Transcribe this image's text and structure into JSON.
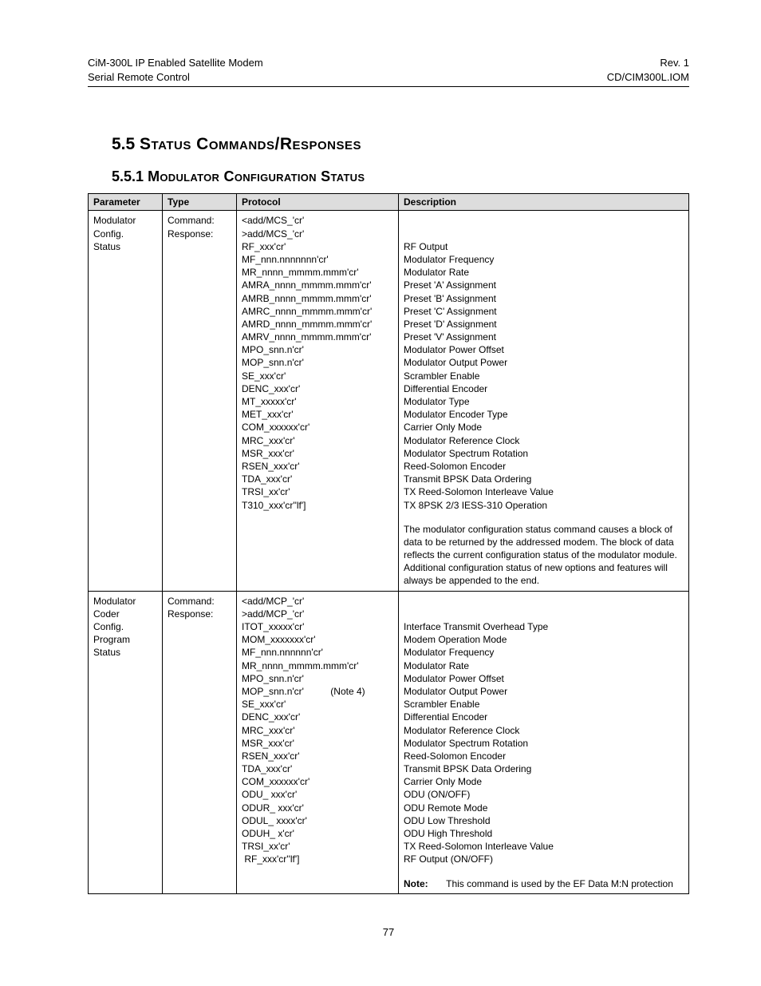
{
  "header": {
    "left1": "CiM-300L IP Enabled Satellite Modem",
    "left2": "Serial Remote Control",
    "right1": "Rev. 1",
    "right2": "CD/CIM300L.IOM"
  },
  "section": {
    "num": "5.5",
    "title": "Status Commands/Responses",
    "sub_num": "5.5.1",
    "sub_title": "Modulator Configuration Status"
  },
  "table": {
    "headers": [
      "Parameter",
      "Type",
      "Protocol",
      "Description"
    ],
    "rows": [
      {
        "parameter": "Modulator Config. Status",
        "type": "Command:\nResponse:",
        "protocol": [
          "<add/MCS_'cr'",
          ">add/MCS_'cr'",
          "RF_xxx'cr'",
          "MF_nnn.nnnnnnn'cr'",
          "MR_nnnn_mmmm.mmm'cr'",
          "AMRA_nnnn_mmmm.mmm'cr'",
          "AMRB_nnnn_mmmm.mmm'cr'",
          "AMRC_nnnn_mmmm.mmm'cr'",
          "AMRD_nnnn_mmmm.mmm'cr'",
          "AMRV_nnnn_mmmm.mmm'cr'",
          "MPO_snn.n'cr'",
          "MOP_snn.n'cr'",
          "SE_xxx'cr'",
          "DENC_xxx'cr'",
          "MT_xxxxx'cr'",
          "MET_xxx'cr'",
          "COM_xxxxxx'cr'",
          "MRC_xxx'cr'",
          "MSR_xxx'cr'",
          "RSEN_xxx'cr'",
          "TDA_xxx'cr'",
          "TRSI_xx'cr'",
          "T310_xxx'cr''lf']"
        ],
        "desc_lines": [
          "",
          "",
          "RF Output",
          "Modulator Frequency",
          "Modulator Rate",
          "Preset 'A' Assignment",
          "Preset 'B' Assignment",
          "Preset 'C' Assignment",
          "Preset 'D' Assignment",
          "Preset 'V' Assignment",
          "Modulator Power Offset",
          "Modulator Output Power",
          "Scrambler Enable",
          "Differential Encoder",
          "Modulator Type",
          "Modulator Encoder Type",
          "Carrier Only Mode",
          "Modulator Reference Clock",
          "Modulator Spectrum Rotation",
          "Reed-Solomon Encoder",
          "Transmit BPSK Data Ordering",
          "TX Reed-Solomon Interleave Value",
          "TX 8PSK 2/3 IESS-310 Operation"
        ],
        "desc_para": "The modulator configuration status command causes a block of data to be returned by the addressed modem. The block of data reflects the current configuration status of the modulator module. Additional configuration status of new options and features will always be appended to the end."
      },
      {
        "parameter": "Modulator Coder Config. Program Status",
        "type": "Command:\nResponse:",
        "protocol": [
          "<add/MCP_'cr'",
          ">add/MCP_'cr'",
          "ITOT_xxxxx'cr'",
          "MOM_xxxxxxx'cr'",
          "MF_nnn.nnnnnn'cr'",
          "MR_nnnn_mmmm.mmm'cr'",
          "MPO_snn.n'cr'",
          "MOP_snn.n'cr'          (Note 4)",
          "SE_xxx'cr'",
          "DENC_xxx'cr'",
          "MRC_xxx'cr'",
          "MSR_xxx'cr'",
          "RSEN_xxx'cr'",
          "TDA_xxx'cr'",
          "COM_xxxxxx'cr'",
          "ODU_ xxx'cr'",
          "ODUR_ xxx'cr'",
          "ODUL_ xxxx'cr'",
          "ODUH_ x'cr'",
          "TRSI_xx'cr'",
          " RF_xxx'cr''lf']"
        ],
        "desc_lines": [
          "",
          "",
          "Interface Transmit Overhead Type",
          "Modem Operation Mode",
          "Modulator Frequency",
          "Modulator Rate",
          "Modulator Power Offset",
          "Modulator Output Power",
          "Scrambler Enable",
          "Differential Encoder",
          "Modulator Reference Clock",
          "Modulator Spectrum Rotation",
          "Reed-Solomon Encoder",
          "Transmit BPSK Data Ordering",
          "Carrier Only Mode",
          "ODU (ON/OFF)",
          "ODU Remote Mode",
          "ODU Low Threshold",
          "ODU High Threshold",
          "TX Reed-Solomon Interleave Value",
          "RF Output (ON/OFF)"
        ],
        "note_label": "Note:",
        "note_text": "This command is used by the EF Data M:N protection"
      }
    ]
  },
  "page_number": "77"
}
